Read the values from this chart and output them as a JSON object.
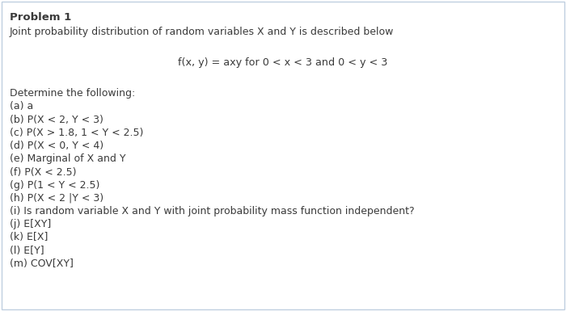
{
  "title": "Problem 1",
  "subtitle": "Joint probability distribution of random variables X and Y is described below",
  "formula": "f(x, y) = axy for 0 < x < 3 and 0 < y < 3",
  "determine": "Determine the following:",
  "items": [
    "(a) a",
    "(b) P(X < 2, Y < 3)",
    "(c) P(X > 1.8, 1 < Y < 2.5)",
    "(d) P(X < 0, Y < 4)",
    "(e) Marginal of X and Y",
    "(f) P(X < 2.5)",
    "(g) P(1 < Y < 2.5)",
    "(h) P(X < 2 |Y < 3)",
    "(i) Is random variable X and Y with joint probability mass function independent?",
    "(j) E[XY]",
    "(k) E[X]",
    "(l) E[Y]",
    "(m) COV[XY]"
  ],
  "bg_color": "#ffffff",
  "border_color": "#c0cfe0",
  "text_color": "#3a3a3a",
  "title_fontsize": 9.5,
  "body_fontsize": 9.0,
  "formula_fontsize": 9.2
}
